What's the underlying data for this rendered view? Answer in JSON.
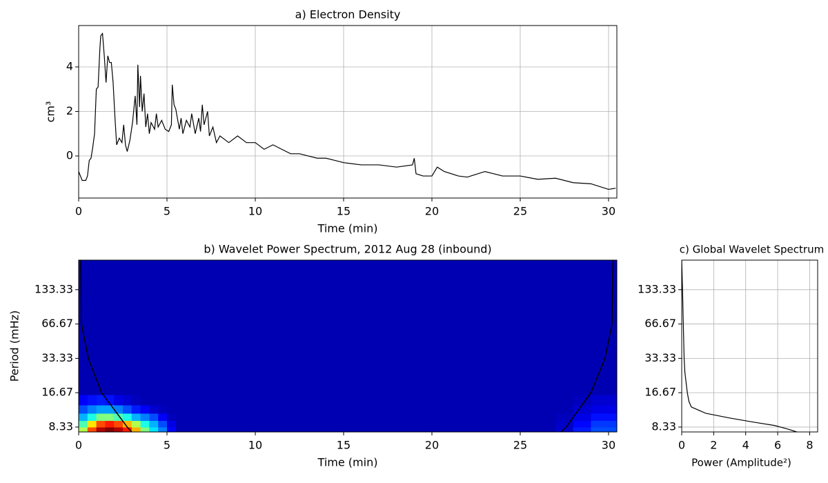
{
  "chart_data": [
    {
      "type": "line",
      "title": "a) Electron Density",
      "xlabel": "Time (min)",
      "ylabel": "cm³",
      "xlim": [
        0,
        30.47
      ],
      "ylim": [
        -1.89,
        5.86
      ],
      "xticks": [
        0,
        5,
        10,
        15,
        20,
        25,
        30
      ],
      "yticks": [
        0,
        2,
        4
      ],
      "grid": true,
      "color": "#000000",
      "x": [
        0,
        0.2,
        0.4,
        0.5,
        0.6,
        0.7,
        0.8,
        0.9,
        1.0,
        1.1,
        1.2,
        1.25,
        1.35,
        1.45,
        1.55,
        1.65,
        1.75,
        1.85,
        1.95,
        2.05,
        2.15,
        2.3,
        2.45,
        2.55,
        2.65,
        2.75,
        2.9,
        3.05,
        3.2,
        3.3,
        3.35,
        3.45,
        3.5,
        3.6,
        3.7,
        3.8,
        3.9,
        4.0,
        4.1,
        4.3,
        4.4,
        4.5,
        4.7,
        4.9,
        5.1,
        5.25,
        5.3,
        5.4,
        5.5,
        5.7,
        5.8,
        5.9,
        6.1,
        6.3,
        6.4,
        6.6,
        6.8,
        6.9,
        7.0,
        7.1,
        7.3,
        7.4,
        7.6,
        7.8,
        8.0,
        8.5,
        9.0,
        9.5,
        10,
        10.5,
        11,
        11.5,
        12,
        12.5,
        13,
        13.5,
        14,
        14.5,
        15,
        16,
        17,
        18,
        18.9,
        19.0,
        19.1,
        19.5,
        20,
        20.3,
        20.7,
        21.5,
        22,
        23,
        23.5,
        24,
        25,
        26,
        27,
        28,
        29,
        30,
        30.4
      ],
      "values": [
        -0.7,
        -1.1,
        -1.1,
        -0.9,
        -0.2,
        -0.1,
        0.4,
        1.0,
        3.0,
        3.1,
        4.8,
        5.4,
        5.5,
        4.5,
        3.3,
        4.5,
        4.2,
        4.2,
        3.3,
        1.8,
        0.5,
        0.8,
        0.6,
        1.4,
        0.5,
        0.2,
        0.7,
        1.5,
        2.7,
        1.4,
        4.1,
        2.2,
        3.6,
        2.0,
        2.8,
        1.3,
        1.9,
        1.0,
        1.5,
        1.2,
        1.9,
        1.3,
        1.6,
        1.2,
        1.1,
        1.4,
        3.2,
        2.3,
        2.1,
        1.2,
        1.7,
        1.0,
        1.6,
        1.3,
        1.9,
        1.0,
        1.7,
        1.1,
        2.3,
        1.4,
        2.0,
        0.9,
        1.3,
        0.6,
        0.9,
        0.6,
        0.9,
        0.6,
        0.6,
        0.3,
        0.5,
        0.3,
        0.1,
        0.1,
        0.0,
        -0.1,
        -0.1,
        -0.2,
        -0.3,
        -0.4,
        -0.4,
        -0.5,
        -0.4,
        -0.1,
        -0.8,
        -0.9,
        -0.9,
        -0.5,
        -0.7,
        -0.9,
        -0.95,
        -0.7,
        -0.8,
        -0.9,
        -0.9,
        -1.05,
        -1.0,
        -1.2,
        -1.25,
        -1.5,
        -1.45
      ]
    },
    {
      "type": "heatmap",
      "title": "b) Wavelet Power Spectrum, 2012 Aug 28 (inbound)",
      "xlabel": "Time (min)",
      "ylabel": "Period (mHz)",
      "xlim": [
        0,
        30.47
      ],
      "ylim": [
        7.55,
        242
      ],
      "yscale": "log",
      "xticks": [
        0,
        5,
        10,
        15,
        20,
        25,
        30
      ],
      "yticks": [
        8.33,
        16.67,
        33.33,
        66.67,
        133.33
      ],
      "grid": false,
      "colormap": "jet",
      "zlim": [
        0,
        1
      ],
      "x_edges": [
        0,
        0.5,
        1,
        1.5,
        2,
        2.5,
        3,
        3.5,
        4,
        4.5,
        5,
        5.5,
        27,
        28,
        29,
        30.47
      ],
      "y_edges": [
        7.55,
        8.33,
        9.5,
        11,
        13,
        16,
        242
      ],
      "z": [
        [
          0.55,
          0.8,
          0.95,
          1.0,
          0.95,
          0.85,
          0.7,
          0.5,
          0.35,
          0.25,
          0.12,
          0.05,
          0.08,
          0.15,
          0.2
        ],
        [
          0.45,
          0.65,
          0.8,
          0.85,
          0.8,
          0.7,
          0.55,
          0.4,
          0.3,
          0.2,
          0.1,
          0.05,
          0.07,
          0.13,
          0.18
        ],
        [
          0.3,
          0.4,
          0.5,
          0.5,
          0.45,
          0.4,
          0.3,
          0.25,
          0.2,
          0.12,
          0.06,
          0.05,
          0.06,
          0.1,
          0.14
        ],
        [
          0.2,
          0.25,
          0.28,
          0.28,
          0.25,
          0.2,
          0.15,
          0.12,
          0.08,
          0.06,
          0.05,
          0.05,
          0.05,
          0.08,
          0.1
        ],
        [
          0.12,
          0.14,
          0.15,
          0.14,
          0.1,
          0.08,
          0.06,
          0.05,
          0.05,
          0.05,
          0.05,
          0.05,
          0.05,
          0.06,
          0.08
        ],
        [
          0.05,
          0.05,
          0.05,
          0.05,
          0.05,
          0.05,
          0.05,
          0.05,
          0.05,
          0.05,
          0.05,
          0.05,
          0.05,
          0.05,
          0.05
        ]
      ],
      "lines": [
        {
          "color": "#000000",
          "x": [
            0.12,
            0.16,
            0.55,
            1.3,
            2.75,
            3.0
          ],
          "y": [
            242,
            66.67,
            33.33,
            16.67,
            8.33,
            7.55
          ]
        },
        {
          "color": "#000000",
          "x": [
            27.3,
            27.6,
            29.0,
            29.8,
            30.2,
            30.25
          ],
          "y": [
            7.55,
            8.33,
            16.67,
            33.33,
            66.67,
            242
          ]
        }
      ]
    },
    {
      "type": "hline",
      "title": "c) Global Wavelet Spectrum",
      "xlabel": "Power (Amplitude²)",
      "xlim": [
        0,
        8.5
      ],
      "ylim": [
        7.55,
        242
      ],
      "yscale": "log",
      "xticks": [
        0,
        2,
        4,
        6,
        8
      ],
      "yticks": [
        8.33,
        16.67,
        33.33,
        66.67,
        133.33
      ],
      "grid": true,
      "color": "#000000",
      "y": [
        242,
        133.33,
        66.67,
        33.33,
        25,
        16.67,
        14,
        12.5,
        11,
        10,
        9.2,
        8.6,
        8.1,
        7.55
      ],
      "values": [
        0,
        0.05,
        0.1,
        0.15,
        0.2,
        0.35,
        0.45,
        0.6,
        1.5,
        3.0,
        4.5,
        5.8,
        6.5,
        7.2
      ]
    }
  ]
}
